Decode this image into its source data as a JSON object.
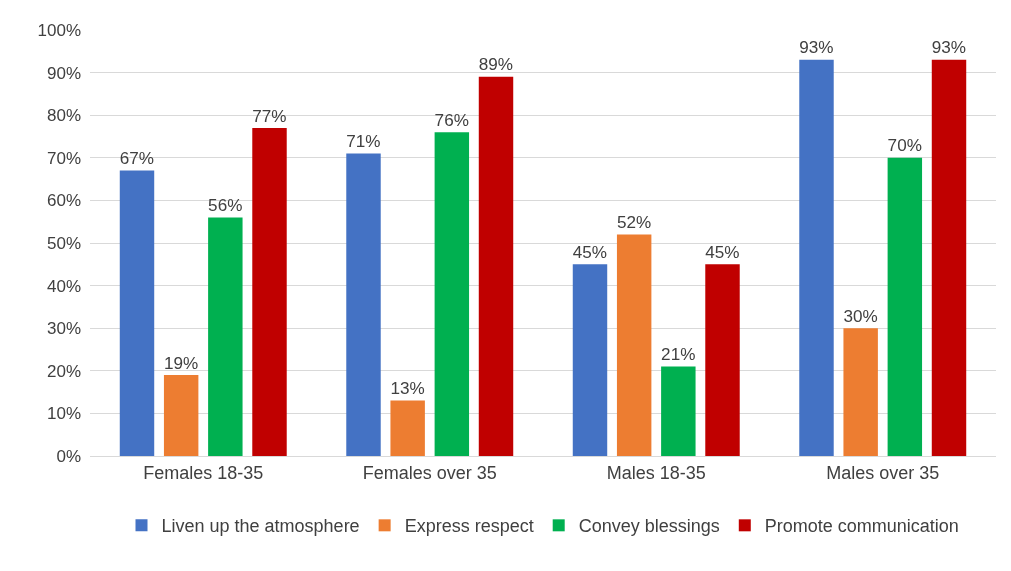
{
  "chart_data": {
    "type": "bar",
    "categories": [
      "Females 18-35",
      "Females over 35",
      "Males 18-35",
      "Males over 35"
    ],
    "series": [
      {
        "name": "Liven up the atmosphere",
        "color": "#4472c4",
        "values": [
          67,
          71,
          45,
          93
        ],
        "value_labels": [
          "67%",
          "71%",
          "45%",
          "93%"
        ]
      },
      {
        "name": "Express respect",
        "color": "#ed7d31",
        "values": [
          19,
          13,
          52,
          30
        ],
        "value_labels": [
          "19%",
          "13%",
          "52%",
          "30%"
        ]
      },
      {
        "name": "Convey blessings",
        "color": "#00b050",
        "values": [
          56,
          76,
          21,
          70
        ],
        "value_labels": [
          "56%",
          "76%",
          "21%",
          "70%"
        ]
      },
      {
        "name": "Promote communication",
        "color": "#c00000",
        "values": [
          77,
          89,
          45,
          93
        ],
        "value_labels": [
          "77%",
          "89%",
          "45%",
          "93%"
        ]
      }
    ],
    "ylim": [
      0,
      100
    ],
    "yticks": [
      {
        "value": 0,
        "label": "0%"
      },
      {
        "value": 10,
        "label": "10%"
      },
      {
        "value": 20,
        "label": "20%"
      },
      {
        "value": 30,
        "label": "30%"
      },
      {
        "value": 40,
        "label": "40%"
      },
      {
        "value": 50,
        "label": "50%"
      },
      {
        "value": 60,
        "label": "60%"
      },
      {
        "value": 70,
        "label": "70%"
      },
      {
        "value": 80,
        "label": "80%"
      },
      {
        "value": 90,
        "label": "90%"
      },
      {
        "value": 100,
        "label": "100%"
      }
    ],
    "grid": "y",
    "legend": "bottom"
  }
}
